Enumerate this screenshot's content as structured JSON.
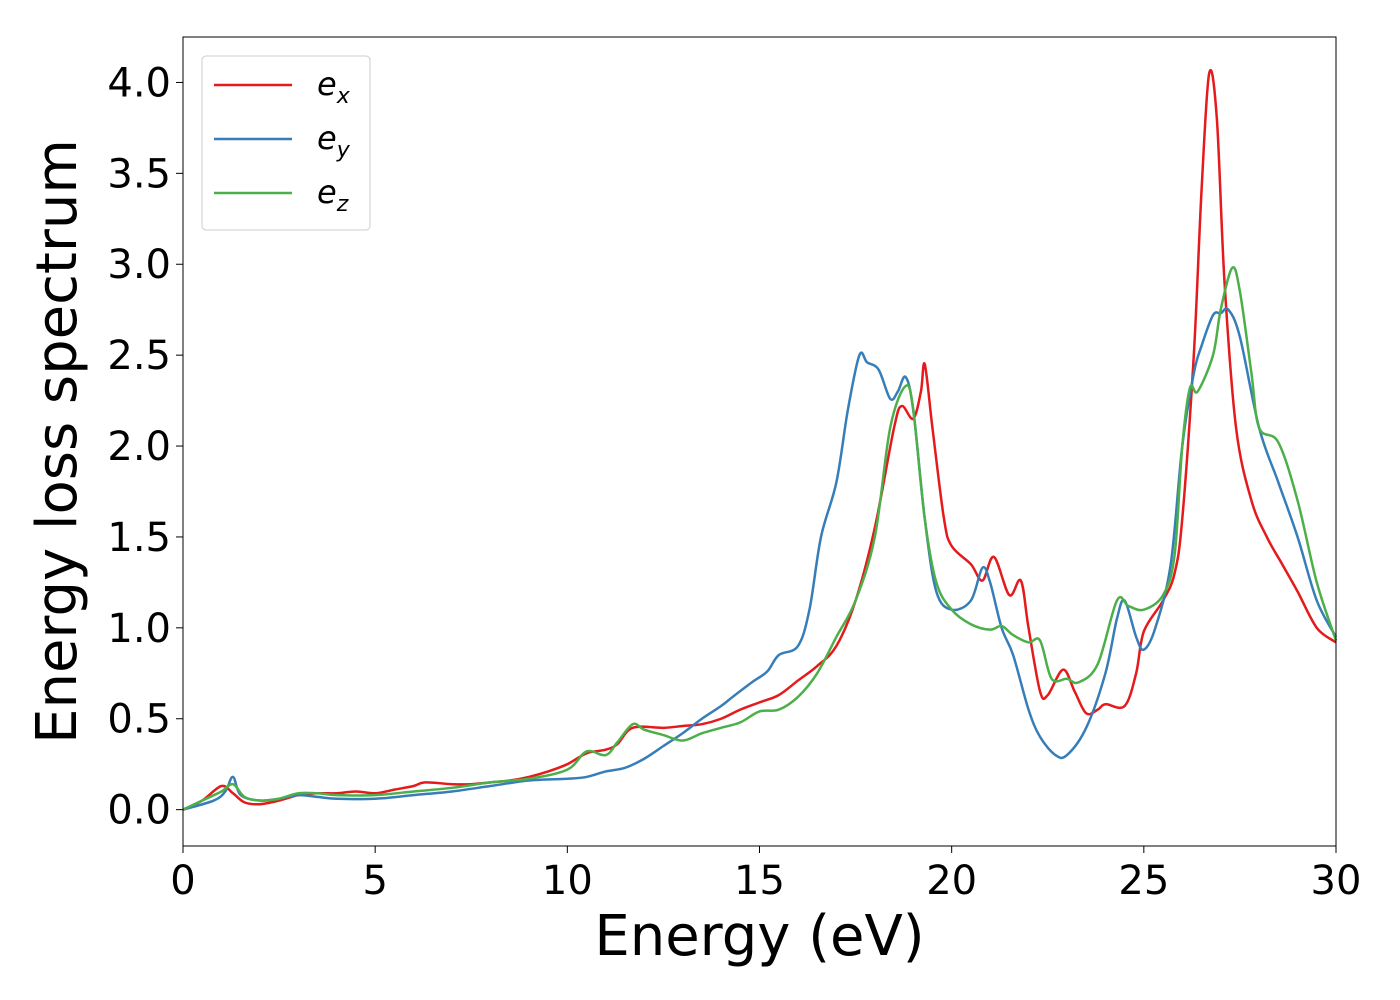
{
  "chart_data": {
    "type": "line",
    "title": "",
    "xlabel": "Energy (eV)",
    "ylabel": "Energy loss spectrum",
    "xlim": [
      0,
      30
    ],
    "ylim": [
      -0.2,
      4.25
    ],
    "xticks": [
      0,
      5,
      10,
      15,
      20,
      25,
      30
    ],
    "xtick_labels": [
      "0",
      "5",
      "10",
      "15",
      "20",
      "25",
      "30"
    ],
    "yticks": [
      0.0,
      0.5,
      1.0,
      1.5,
      2.0,
      2.5,
      3.0,
      3.5,
      4.0
    ],
    "ytick_labels": [
      "0.0",
      "0.5",
      "1.0",
      "1.5",
      "2.0",
      "2.5",
      "3.0",
      "3.5",
      "4.0"
    ],
    "grid": false,
    "legend_position": "top-left",
    "series": [
      {
        "name": "e",
        "subscript": "x",
        "color": "#e41a1c",
        "points": [
          [
            0,
            0
          ],
          [
            0.5,
            0.05
          ],
          [
            1.0,
            0.13
          ],
          [
            1.3,
            0.09
          ],
          [
            1.6,
            0.04
          ],
          [
            2.0,
            0.03
          ],
          [
            2.5,
            0.05
          ],
          [
            3.0,
            0.08
          ],
          [
            3.5,
            0.09
          ],
          [
            4.0,
            0.09
          ],
          [
            4.5,
            0.1
          ],
          [
            5.0,
            0.09
          ],
          [
            5.5,
            0.11
          ],
          [
            6.0,
            0.13
          ],
          [
            6.3,
            0.15
          ],
          [
            7.0,
            0.14
          ],
          [
            7.5,
            0.14
          ],
          [
            8.0,
            0.15
          ],
          [
            8.5,
            0.16
          ],
          [
            9.0,
            0.18
          ],
          [
            9.5,
            0.21
          ],
          [
            10.0,
            0.25
          ],
          [
            10.5,
            0.31
          ],
          [
            11.0,
            0.33
          ],
          [
            11.3,
            0.36
          ],
          [
            11.7,
            0.45
          ],
          [
            12.5,
            0.45
          ],
          [
            13.0,
            0.46
          ],
          [
            13.5,
            0.47
          ],
          [
            14.0,
            0.5
          ],
          [
            14.5,
            0.55
          ],
          [
            15.0,
            0.59
          ],
          [
            15.5,
            0.63
          ],
          [
            16.0,
            0.71
          ],
          [
            16.5,
            0.79
          ],
          [
            17.0,
            0.9
          ],
          [
            17.5,
            1.15
          ],
          [
            18.0,
            1.55
          ],
          [
            18.5,
            2.1
          ],
          [
            18.7,
            2.22
          ],
          [
            19.0,
            2.15
          ],
          [
            19.2,
            2.3
          ],
          [
            19.3,
            2.45
          ],
          [
            19.5,
            2.1
          ],
          [
            19.8,
            1.6
          ],
          [
            20.0,
            1.45
          ],
          [
            20.5,
            1.35
          ],
          [
            20.8,
            1.26
          ],
          [
            21.1,
            1.39
          ],
          [
            21.5,
            1.18
          ],
          [
            21.8,
            1.26
          ],
          [
            22.0,
            1.0
          ],
          [
            22.3,
            0.65
          ],
          [
            22.5,
            0.63
          ],
          [
            22.9,
            0.77
          ],
          [
            23.2,
            0.65
          ],
          [
            23.5,
            0.53
          ],
          [
            23.8,
            0.55
          ],
          [
            24.0,
            0.58
          ],
          [
            24.5,
            0.57
          ],
          [
            24.8,
            0.75
          ],
          [
            25.0,
            0.98
          ],
          [
            25.5,
            1.15
          ],
          [
            25.8,
            1.3
          ],
          [
            26.0,
            1.6
          ],
          [
            26.3,
            2.5
          ],
          [
            26.5,
            3.4
          ],
          [
            26.7,
            4.05
          ],
          [
            26.9,
            3.8
          ],
          [
            27.1,
            2.9
          ],
          [
            27.4,
            2.1
          ],
          [
            27.8,
            1.7
          ],
          [
            28.2,
            1.5
          ],
          [
            28.6,
            1.35
          ],
          [
            29.0,
            1.2
          ],
          [
            29.5,
            1.0
          ],
          [
            30.0,
            0.92
          ]
        ]
      },
      {
        "name": "e",
        "subscript": "y",
        "color": "#377eb8",
        "points": [
          [
            0,
            0
          ],
          [
            0.8,
            0.05
          ],
          [
            1.1,
            0.1
          ],
          [
            1.3,
            0.18
          ],
          [
            1.5,
            0.08
          ],
          [
            2.0,
            0.05
          ],
          [
            2.5,
            0.06
          ],
          [
            3.0,
            0.08
          ],
          [
            3.5,
            0.07
          ],
          [
            4.0,
            0.06
          ],
          [
            5.0,
            0.06
          ],
          [
            6.0,
            0.08
          ],
          [
            7.0,
            0.1
          ],
          [
            8.0,
            0.13
          ],
          [
            9.0,
            0.16
          ],
          [
            10.0,
            0.17
          ],
          [
            10.5,
            0.18
          ],
          [
            11.0,
            0.21
          ],
          [
            11.5,
            0.23
          ],
          [
            12.0,
            0.28
          ],
          [
            12.5,
            0.35
          ],
          [
            13.0,
            0.42
          ],
          [
            13.5,
            0.5
          ],
          [
            14.0,
            0.57
          ],
          [
            14.3,
            0.62
          ],
          [
            14.8,
            0.7
          ],
          [
            15.2,
            0.76
          ],
          [
            15.5,
            0.85
          ],
          [
            16.0,
            0.9
          ],
          [
            16.3,
            1.1
          ],
          [
            16.6,
            1.5
          ],
          [
            17.0,
            1.8
          ],
          [
            17.3,
            2.2
          ],
          [
            17.6,
            2.5
          ],
          [
            17.8,
            2.46
          ],
          [
            18.1,
            2.42
          ],
          [
            18.4,
            2.26
          ],
          [
            18.6,
            2.3
          ],
          [
            18.8,
            2.38
          ],
          [
            19.0,
            2.2
          ],
          [
            19.3,
            1.6
          ],
          [
            19.6,
            1.2
          ],
          [
            20.0,
            1.1
          ],
          [
            20.5,
            1.15
          ],
          [
            20.8,
            1.33
          ],
          [
            21.0,
            1.25
          ],
          [
            21.3,
            1.0
          ],
          [
            21.6,
            0.85
          ],
          [
            22.0,
            0.55
          ],
          [
            22.3,
            0.4
          ],
          [
            22.7,
            0.3
          ],
          [
            23.0,
            0.3
          ],
          [
            23.5,
            0.45
          ],
          [
            24.0,
            0.75
          ],
          [
            24.3,
            1.05
          ],
          [
            24.5,
            1.15
          ],
          [
            24.8,
            0.95
          ],
          [
            25.0,
            0.88
          ],
          [
            25.3,
            1.0
          ],
          [
            25.7,
            1.35
          ],
          [
            26.0,
            2.0
          ],
          [
            26.3,
            2.4
          ],
          [
            26.5,
            2.55
          ],
          [
            26.8,
            2.72
          ],
          [
            27.0,
            2.73
          ],
          [
            27.2,
            2.75
          ],
          [
            27.5,
            2.6
          ],
          [
            28.0,
            2.1
          ],
          [
            28.5,
            1.8
          ],
          [
            29.0,
            1.5
          ],
          [
            29.5,
            1.15
          ],
          [
            30.0,
            0.95
          ]
        ]
      },
      {
        "name": "e",
        "subscript": "z",
        "color": "#4daf4a",
        "points": [
          [
            0,
            0
          ],
          [
            0.5,
            0.05
          ],
          [
            1.0,
            0.1
          ],
          [
            1.3,
            0.14
          ],
          [
            1.6,
            0.07
          ],
          [
            2.0,
            0.05
          ],
          [
            2.5,
            0.06
          ],
          [
            3.0,
            0.09
          ],
          [
            3.5,
            0.09
          ],
          [
            4.0,
            0.08
          ],
          [
            5.0,
            0.08
          ],
          [
            6.0,
            0.1
          ],
          [
            7.0,
            0.12
          ],
          [
            8.0,
            0.15
          ],
          [
            9.0,
            0.17
          ],
          [
            10.0,
            0.22
          ],
          [
            10.5,
            0.32
          ],
          [
            11.0,
            0.3
          ],
          [
            11.3,
            0.37
          ],
          [
            11.7,
            0.47
          ],
          [
            12.0,
            0.44
          ],
          [
            12.5,
            0.41
          ],
          [
            13.0,
            0.38
          ],
          [
            13.5,
            0.42
          ],
          [
            14.0,
            0.45
          ],
          [
            14.5,
            0.48
          ],
          [
            15.0,
            0.54
          ],
          [
            15.5,
            0.55
          ],
          [
            16.0,
            0.62
          ],
          [
            16.5,
            0.75
          ],
          [
            17.0,
            0.95
          ],
          [
            17.5,
            1.15
          ],
          [
            18.0,
            1.5
          ],
          [
            18.4,
            2.1
          ],
          [
            18.8,
            2.33
          ],
          [
            19.0,
            2.2
          ],
          [
            19.3,
            1.6
          ],
          [
            19.6,
            1.25
          ],
          [
            20.0,
            1.1
          ],
          [
            20.5,
            1.02
          ],
          [
            21.0,
            0.99
          ],
          [
            21.3,
            1.01
          ],
          [
            21.6,
            0.96
          ],
          [
            22.0,
            0.92
          ],
          [
            22.3,
            0.93
          ],
          [
            22.6,
            0.72
          ],
          [
            23.0,
            0.72
          ],
          [
            23.3,
            0.7
          ],
          [
            23.8,
            0.8
          ],
          [
            24.3,
            1.15
          ],
          [
            24.6,
            1.12
          ],
          [
            25.0,
            1.1
          ],
          [
            25.5,
            1.18
          ],
          [
            25.8,
            1.4
          ],
          [
            26.0,
            2.0
          ],
          [
            26.2,
            2.32
          ],
          [
            26.4,
            2.3
          ],
          [
            26.8,
            2.5
          ],
          [
            27.0,
            2.75
          ],
          [
            27.3,
            2.98
          ],
          [
            27.5,
            2.85
          ],
          [
            27.8,
            2.4
          ],
          [
            28.0,
            2.1
          ],
          [
            28.5,
            2.02
          ],
          [
            29.0,
            1.7
          ],
          [
            29.5,
            1.25
          ],
          [
            30.0,
            0.93
          ]
        ]
      }
    ]
  }
}
